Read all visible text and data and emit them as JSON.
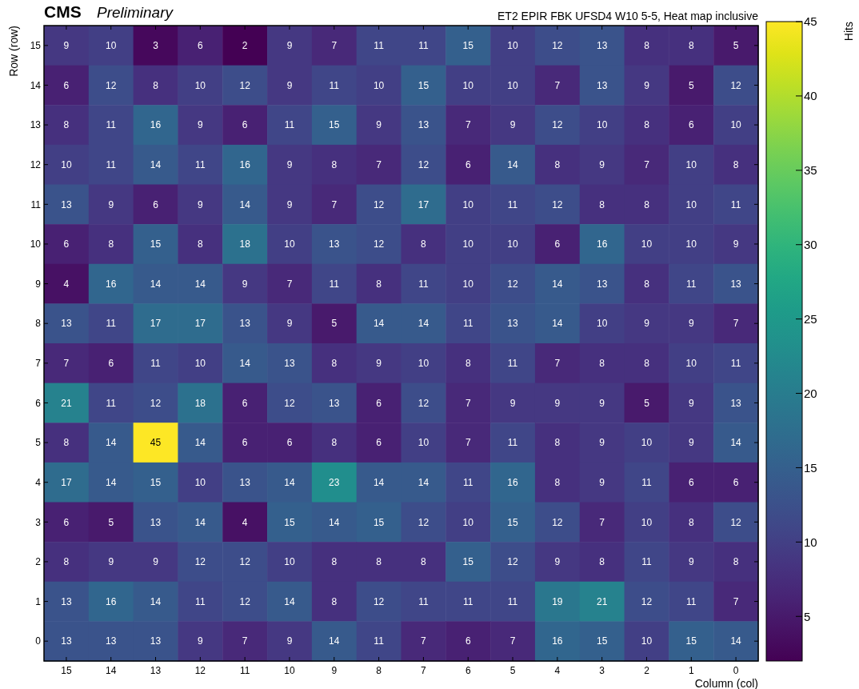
{
  "chart_data": {
    "type": "heatmap",
    "title": "CMS",
    "subtitle": "Preliminary",
    "annotations": [
      "ET2 EPIR FBK UFSD4 W10 5-5, Heat map inclusive"
    ],
    "xlabel": "Column (col)",
    "ylabel": "Row (row)",
    "clabel": "Hits",
    "categories": [
      "15",
      "14",
      "13",
      "12",
      "11",
      "10",
      "9",
      "8",
      "7",
      "6",
      "5",
      "4",
      "3",
      "2",
      "1",
      "0"
    ],
    "y_categories": [
      "15",
      "14",
      "13",
      "12",
      "11",
      "10",
      "9",
      "8",
      "7",
      "6",
      "5",
      "4",
      "3",
      "2",
      "1",
      "0"
    ],
    "cells": [
      [
        9,
        10,
        3,
        6,
        2,
        9,
        7,
        11,
        11,
        15,
        10,
        12,
        13,
        8,
        8,
        5
      ],
      [
        6,
        12,
        8,
        10,
        12,
        9,
        11,
        10,
        15,
        10,
        10,
        7,
        13,
        9,
        5,
        12
      ],
      [
        8,
        11,
        16,
        9,
        6,
        11,
        15,
        9,
        13,
        7,
        9,
        12,
        10,
        8,
        6,
        10
      ],
      [
        10,
        11,
        14,
        11,
        16,
        9,
        8,
        7,
        12,
        6,
        14,
        8,
        9,
        7,
        10,
        8
      ],
      [
        13,
        9,
        6,
        9,
        14,
        9,
        7,
        12,
        17,
        10,
        11,
        12,
        8,
        8,
        10,
        11
      ],
      [
        6,
        8,
        15,
        8,
        18,
        10,
        13,
        12,
        8,
        10,
        10,
        6,
        16,
        10,
        10,
        9
      ],
      [
        4,
        16,
        14,
        14,
        9,
        7,
        11,
        8,
        11,
        10,
        12,
        14,
        13,
        8,
        11,
        13
      ],
      [
        13,
        11,
        17,
        17,
        13,
        9,
        5,
        14,
        14,
        11,
        13,
        14,
        10,
        9,
        9,
        7
      ],
      [
        7,
        6,
        11,
        10,
        14,
        13,
        8,
        9,
        10,
        8,
        11,
        7,
        8,
        8,
        10,
        11
      ],
      [
        21,
        11,
        12,
        18,
        6,
        12,
        13,
        6,
        12,
        7,
        9,
        9,
        9,
        5,
        9,
        13
      ],
      [
        8,
        14,
        45,
        14,
        6,
        6,
        8,
        6,
        10,
        7,
        11,
        8,
        9,
        10,
        9,
        14
      ],
      [
        17,
        14,
        15,
        10,
        13,
        14,
        23,
        14,
        14,
        11,
        16,
        8,
        9,
        11,
        6,
        6
      ],
      [
        6,
        5,
        13,
        14,
        4,
        15,
        14,
        15,
        12,
        10,
        15,
        12,
        7,
        10,
        8,
        12
      ],
      [
        8,
        9,
        9,
        12,
        12,
        10,
        8,
        8,
        8,
        15,
        12,
        9,
        8,
        11,
        9,
        8
      ],
      [
        13,
        16,
        14,
        11,
        12,
        14,
        8,
        12,
        11,
        11,
        11,
        19,
        21,
        12,
        11,
        7
      ],
      [
        13,
        13,
        13,
        9,
        7,
        9,
        14,
        11,
        7,
        6,
        7,
        16,
        15,
        10,
        15,
        14
      ]
    ],
    "data_labels": true,
    "clim": [
      2,
      45
    ],
    "cticks": [
      5,
      10,
      15,
      20,
      25,
      30,
      35,
      40,
      45
    ]
  }
}
